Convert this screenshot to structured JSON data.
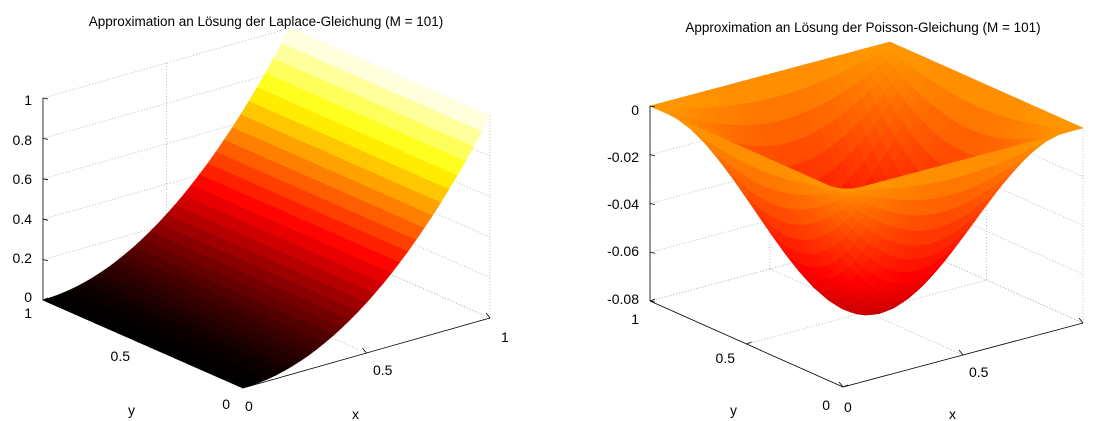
{
  "chart_data": [
    {
      "type": "surface",
      "title": "Approximation an Lösung der Laplace-Gleichung (M = 101)",
      "xlabel": "x",
      "ylabel": "y",
      "zlabel": "",
      "xlim": [
        0,
        1
      ],
      "ylim": [
        0,
        1
      ],
      "zlim": [
        0,
        1
      ],
      "x_ticks": [
        "0",
        "0.5",
        "1"
      ],
      "y_ticks": [
        "0",
        "0.5",
        "1"
      ],
      "z_ticks": [
        "0",
        "0.2",
        "0.4",
        "0.6",
        "0.8",
        "1"
      ],
      "grid": true,
      "colormap": "hot",
      "surface": "u(x, y) = x^2; u = 0 along x = 0, rising to u = 1 along x = 1, constant in y",
      "sample_values": {
        "x": [
          0,
          0.25,
          0.5,
          0.75,
          1
        ],
        "z": [
          0,
          0.0625,
          0.25,
          0.5625,
          1
        ]
      }
    },
    {
      "type": "surface",
      "title": "Approximation an Lösung der Poisson-Gleichung (M = 101)",
      "xlabel": "x",
      "ylabel": "y",
      "zlabel": "",
      "xlim": [
        0,
        1
      ],
      "ylim": [
        0,
        1
      ],
      "zlim": [
        -0.08,
        0
      ],
      "x_ticks": [
        "0",
        "0.5",
        "1"
      ],
      "y_ticks": [
        "0",
        "0.5",
        "1"
      ],
      "z_ticks": [
        "0",
        "-0.02",
        "-0.04",
        "-0.06",
        "-0.08"
      ],
      "grid": true,
      "colormap": "hot",
      "surface": "bowl: u = 0 on the boundary, minimum about -0.08 at (0.5, 0.5)",
      "min_value": -0.08
    }
  ]
}
